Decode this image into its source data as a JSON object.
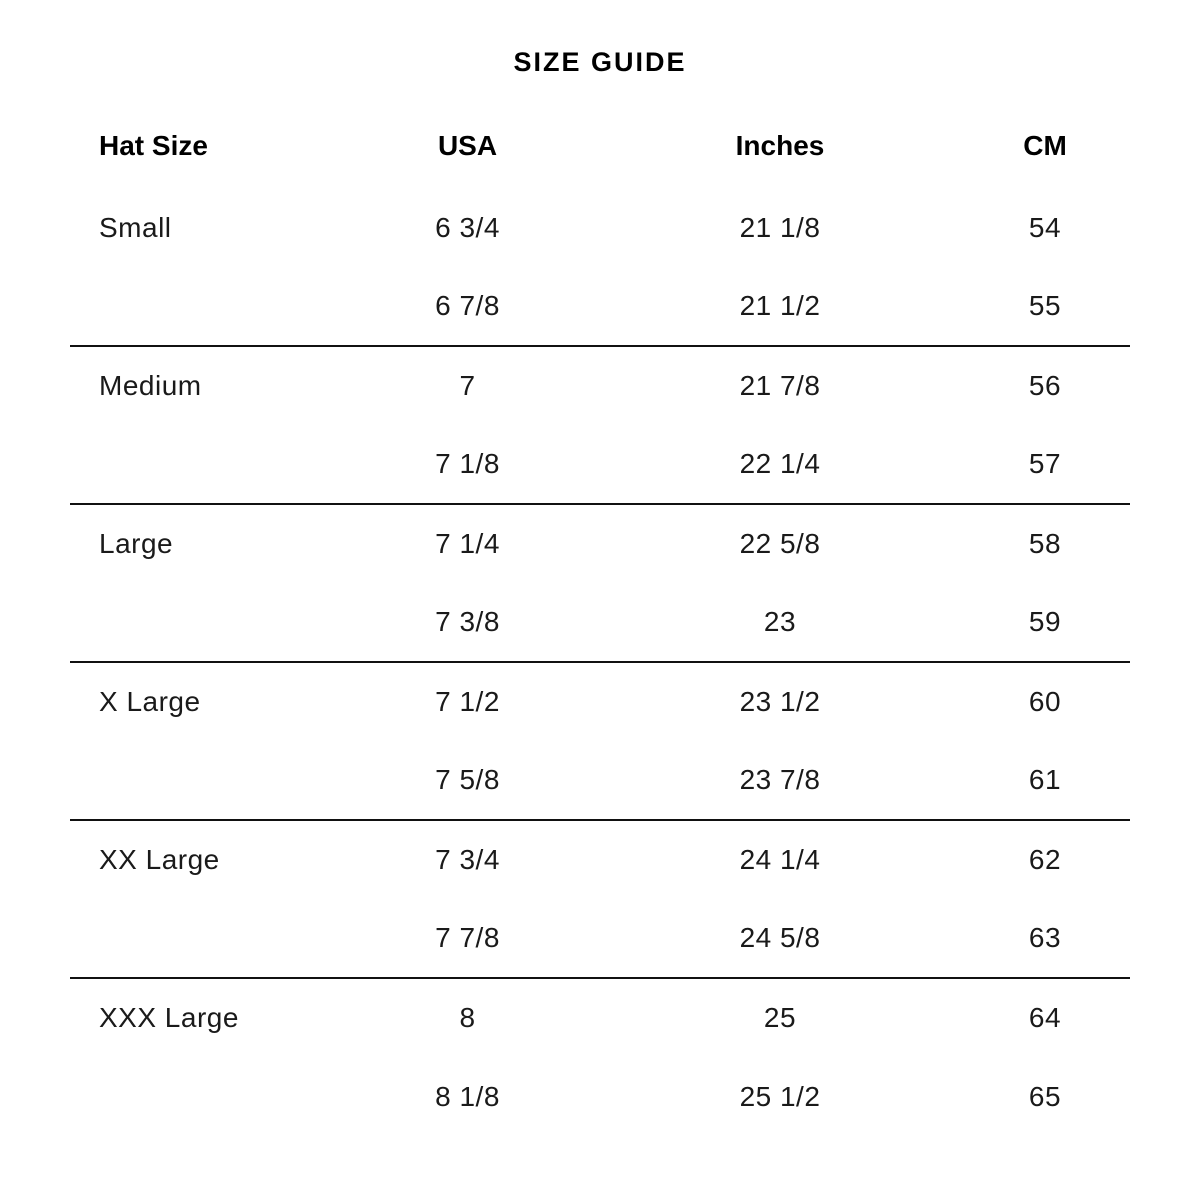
{
  "title": "SIZE GUIDE",
  "table": {
    "columns": [
      "Hat Size",
      "USA",
      "Inches",
      "CM"
    ],
    "groups": [
      {
        "rows": [
          [
            "Small",
            "6 3/4",
            "21 1/8",
            "54"
          ],
          [
            "",
            "6 7/8",
            "21 1/2",
            "55"
          ]
        ]
      },
      {
        "rows": [
          [
            "Medium",
            "7",
            "21 7/8",
            "56"
          ],
          [
            "",
            "7 1/8",
            "22 1/4",
            "57"
          ]
        ]
      },
      {
        "rows": [
          [
            "Large",
            "7 1/4",
            "22 5/8",
            "58"
          ],
          [
            "",
            "7 3/8",
            "23",
            "59"
          ]
        ]
      },
      {
        "rows": [
          [
            "X Large",
            "7 1/2",
            "23 1/2",
            "60"
          ],
          [
            "",
            "7 5/8",
            "23 7/8",
            "61"
          ]
        ]
      },
      {
        "rows": [
          [
            "XX Large",
            "7 3/4",
            "24 1/4",
            "62"
          ],
          [
            "",
            "7 7/8",
            "24 5/8",
            "63"
          ]
        ]
      },
      {
        "rows": [
          [
            "XXX Large",
            "8",
            "25",
            "64"
          ],
          [
            "",
            "8 1/8",
            "25 1/2",
            "65"
          ]
        ]
      }
    ]
  },
  "colors": {
    "background": "#ffffff",
    "text": "#1a1a1a",
    "heading": "#000000",
    "divider": "#111111"
  }
}
